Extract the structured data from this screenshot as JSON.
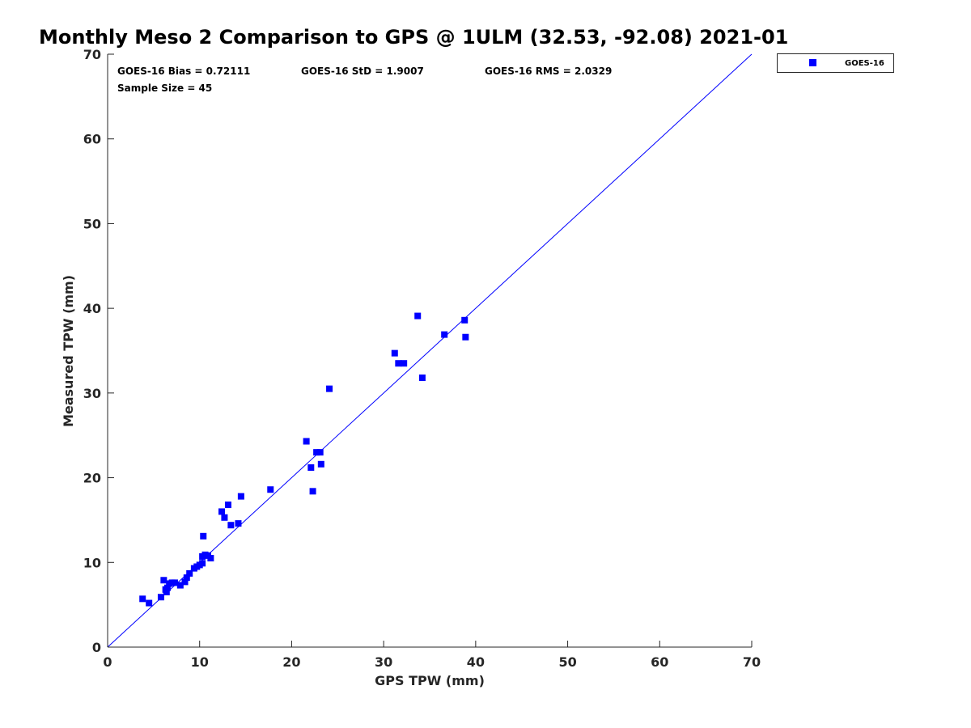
{
  "chart_data": {
    "type": "scatter",
    "title": "Monthly Meso 2 Comparison to GPS @ 1ULM (32.53, -92.08) 2021-01",
    "xlabel": "GPS TPW (mm)",
    "ylabel": "Measured TPW (mm)",
    "xlim": [
      0,
      70
    ],
    "ylim": [
      0,
      70
    ],
    "xticks": [
      "0",
      "10",
      "20",
      "30",
      "40",
      "50",
      "60",
      "70"
    ],
    "yticks": [
      "0",
      "10",
      "20",
      "30",
      "40",
      "50",
      "60",
      "70"
    ],
    "grid": false,
    "legend_position": "outside-top-right",
    "reference_line": "y = x",
    "annotations": {
      "bias": "GOES-16 Bias = 0.72111",
      "std": "GOES-16 StD = 1.9007",
      "rms": "GOES-16 RMS = 2.0329",
      "sample_size": "Sample Size = 45"
    },
    "series": [
      {
        "name": "GOES-16",
        "color": "#0000ff",
        "marker": "square",
        "points": [
          [
            3.8,
            5.7
          ],
          [
            4.5,
            5.2
          ],
          [
            5.8,
            5.9
          ],
          [
            6.1,
            7.9
          ],
          [
            6.4,
            6.5
          ],
          [
            6.5,
            7.0
          ],
          [
            6.7,
            7.5
          ],
          [
            7.0,
            7.6
          ],
          [
            7.3,
            7.6
          ],
          [
            7.9,
            7.3
          ],
          [
            8.4,
            7.7
          ],
          [
            8.6,
            8.2
          ],
          [
            8.9,
            8.7
          ],
          [
            9.4,
            9.3
          ],
          [
            9.7,
            9.5
          ],
          [
            10.0,
            9.7
          ],
          [
            10.3,
            9.9
          ],
          [
            10.3,
            10.7
          ],
          [
            10.6,
            10.9
          ],
          [
            10.9,
            10.8
          ],
          [
            11.2,
            10.5
          ],
          [
            10.4,
            13.1
          ],
          [
            12.4,
            16.0
          ],
          [
            12.7,
            15.3
          ],
          [
            13.1,
            16.8
          ],
          [
            13.4,
            14.4
          ],
          [
            14.2,
            14.6
          ],
          [
            14.5,
            17.8
          ],
          [
            17.7,
            18.6
          ],
          [
            21.6,
            24.3
          ],
          [
            22.1,
            21.2
          ],
          [
            22.3,
            18.4
          ],
          [
            22.7,
            23.0
          ],
          [
            23.1,
            23.0
          ],
          [
            23.2,
            21.6
          ],
          [
            24.1,
            30.5
          ],
          [
            31.2,
            34.7
          ],
          [
            31.6,
            33.5
          ],
          [
            32.2,
            33.5
          ],
          [
            33.7,
            39.1
          ],
          [
            34.2,
            31.8
          ],
          [
            36.6,
            36.9
          ],
          [
            38.8,
            38.6
          ],
          [
            38.9,
            36.6
          ],
          [
            6.3,
            6.8
          ]
        ]
      }
    ]
  }
}
